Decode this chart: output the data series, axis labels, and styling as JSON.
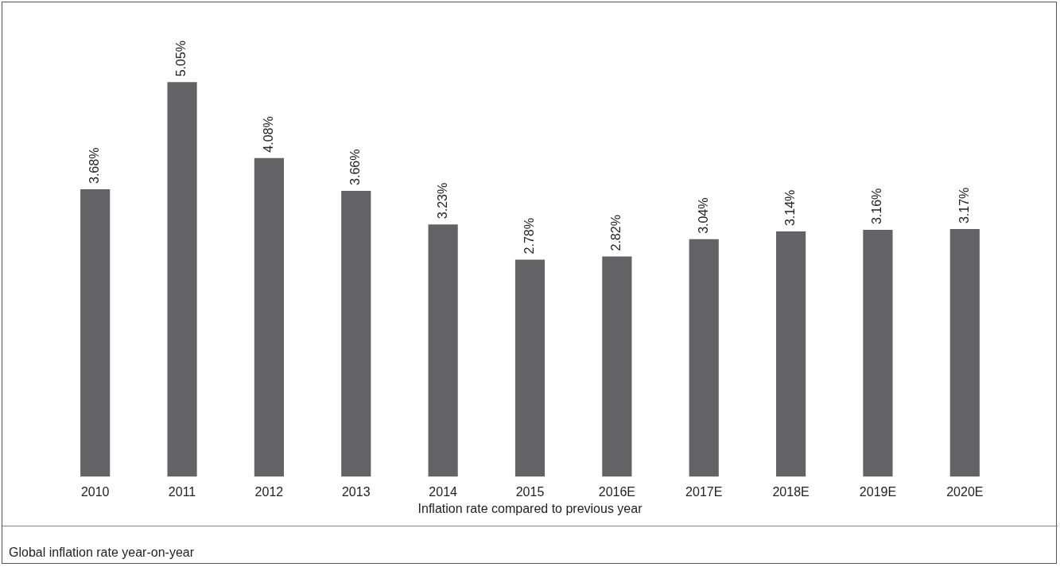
{
  "chart_data": {
    "type": "bar",
    "xlabel": "Inflation rate compared to previous year",
    "categories": [
      "2010",
      "2011",
      "2012",
      "2013",
      "2014",
      "2015",
      "2016E",
      "2017E",
      "2018E",
      "2019E",
      "2020E"
    ],
    "values": [
      3.68,
      5.05,
      4.08,
      3.66,
      3.23,
      2.78,
      2.82,
      3.04,
      3.14,
      3.16,
      3.17
    ],
    "value_labels": [
      "3.68%",
      "5.05%",
      "4.08%",
      "3.66%",
      "3.23%",
      "2.78%",
      "2.82%",
      "3.04%",
      "3.14%",
      "3.16%",
      "3.17%"
    ],
    "color": "#636365",
    "grid": false,
    "legend": false,
    "annotations": [
      "Global inflation rate year-on-year"
    ]
  }
}
